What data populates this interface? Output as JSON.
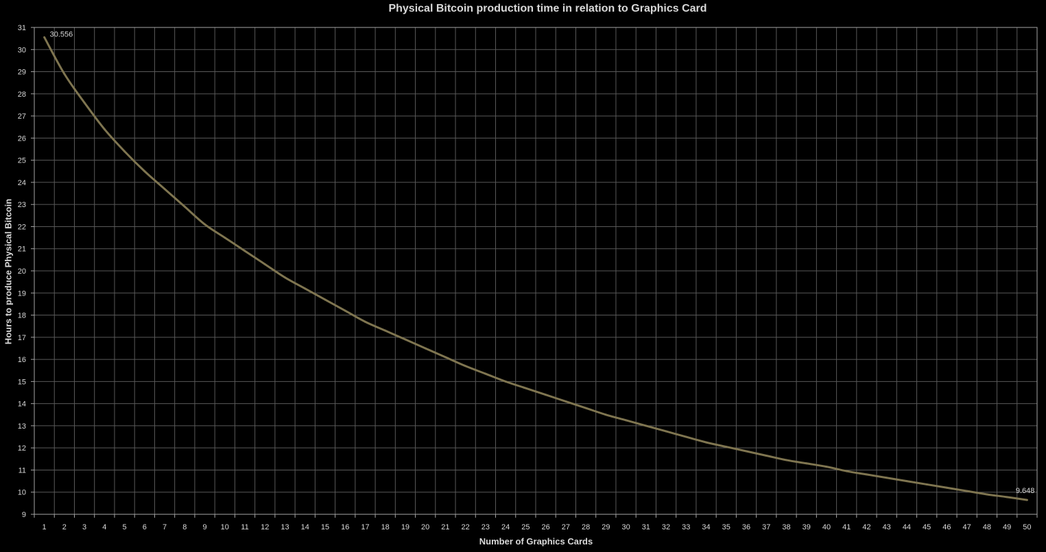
{
  "chart_data": {
    "type": "line",
    "title": "Physical Bitcoin production time in relation to Graphics Card",
    "xlabel": "Number of Graphics Cards",
    "ylabel": "Hours to produce Physical Bitcoin",
    "ylim": [
      9,
      31
    ],
    "grid": true,
    "legend": "none",
    "colors": {
      "background": "#000000",
      "grid": "#595959",
      "line": "#7f7550",
      "text": "#d9d9d9"
    },
    "x": [
      1,
      2,
      3,
      4,
      5,
      6,
      7,
      8,
      9,
      10,
      11,
      12,
      13,
      14,
      15,
      16,
      17,
      18,
      19,
      20,
      21,
      22,
      23,
      24,
      25,
      26,
      27,
      28,
      29,
      30,
      31,
      32,
      33,
      34,
      35,
      36,
      37,
      38,
      39,
      40,
      41,
      42,
      43,
      44,
      45,
      46,
      47,
      48,
      49,
      50
    ],
    "series": [
      {
        "values": [
          30.556,
          28.9,
          27.6,
          26.4,
          25.4,
          24.5,
          23.7,
          22.9,
          22.1,
          21.5,
          20.9,
          20.3,
          19.7,
          19.2,
          18.7,
          18.2,
          17.7,
          17.3,
          16.9,
          16.5,
          16.1,
          15.7,
          15.35,
          15.0,
          14.7,
          14.4,
          14.1,
          13.8,
          13.5,
          13.25,
          13.0,
          12.75,
          12.5,
          12.25,
          12.05,
          11.85,
          11.65,
          11.45,
          11.3,
          11.15,
          10.95,
          10.8,
          10.65,
          10.5,
          10.35,
          10.2,
          10.05,
          9.9,
          9.78,
          9.648
        ]
      }
    ],
    "data_labels": [
      {
        "index": 0,
        "text": "30.556"
      },
      {
        "index": 49,
        "text": "9.648"
      }
    ]
  }
}
